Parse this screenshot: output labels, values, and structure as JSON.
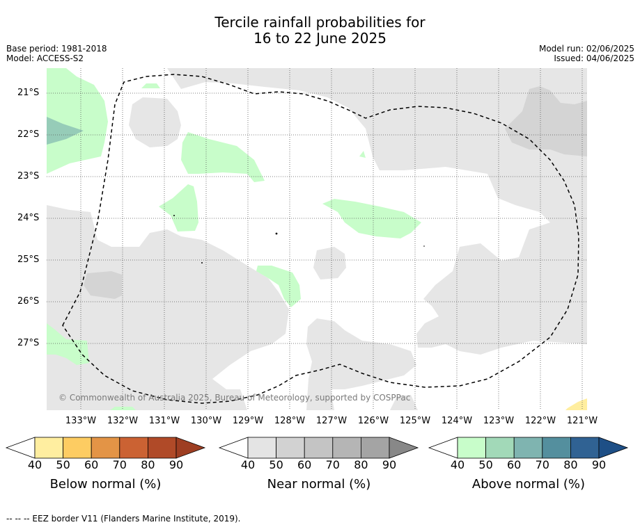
{
  "title": {
    "line1": "Tercile rainfall probabilities for",
    "line2": "16 to 22 June 2025"
  },
  "meta": {
    "base_period": "Base period: 1981-2018",
    "model": "Model: ACCESS-S2",
    "model_run": "Model run: 02/06/2025",
    "issued": "Issued: 04/06/2025"
  },
  "map": {
    "lat_labels": [
      "21°S",
      "22°S",
      "23°S",
      "24°S",
      "25°S",
      "26°S",
      "27°S"
    ],
    "lon_labels": [
      "133°W",
      "132°W",
      "131°W",
      "130°W",
      "129°W",
      "128°W",
      "127°W",
      "126°W",
      "125°W",
      "124°W",
      "123°W",
      "122°W",
      "121°W"
    ],
    "copyright": "© Commonwealth of Australia 2025, Bureau of Meteorology, supported by COSPPac",
    "colors": {
      "near_normal_40": "#e6e6e6",
      "near_normal_50": "#d4d4d4",
      "above_normal_40": "#c8fdca",
      "above_normal_60": "#86b8b3",
      "below_normal_40": "#ffee9f"
    }
  },
  "colorbars": [
    {
      "title": "Below normal (%)",
      "ticks": [
        "40",
        "50",
        "60",
        "70",
        "80",
        "90"
      ],
      "colors": [
        "#ffffff",
        "#ffeea0",
        "#fdcc62",
        "#e39446",
        "#cb6233",
        "#b04a28",
        "#9e3e22"
      ]
    },
    {
      "title": "Near normal (%)",
      "ticks": [
        "40",
        "50",
        "60",
        "70",
        "80",
        "90"
      ],
      "colors": [
        "#ffffff",
        "#e4e4e4",
        "#d2d2d2",
        "#c4c4c4",
        "#b5b5b5",
        "#a4a4a4",
        "#888888"
      ]
    },
    {
      "title": "Above normal (%)",
      "ticks": [
        "40",
        "50",
        "60",
        "70",
        "80",
        "90"
      ],
      "colors": [
        "#ffffff",
        "#c8fdca",
        "#a2d9b8",
        "#7fb4b0",
        "#548f9e",
        "#306293",
        "#1e4f86"
      ]
    }
  ],
  "footer": "--  --  -- EEZ border V11 (Flanders Marine Institute, 2019)."
}
